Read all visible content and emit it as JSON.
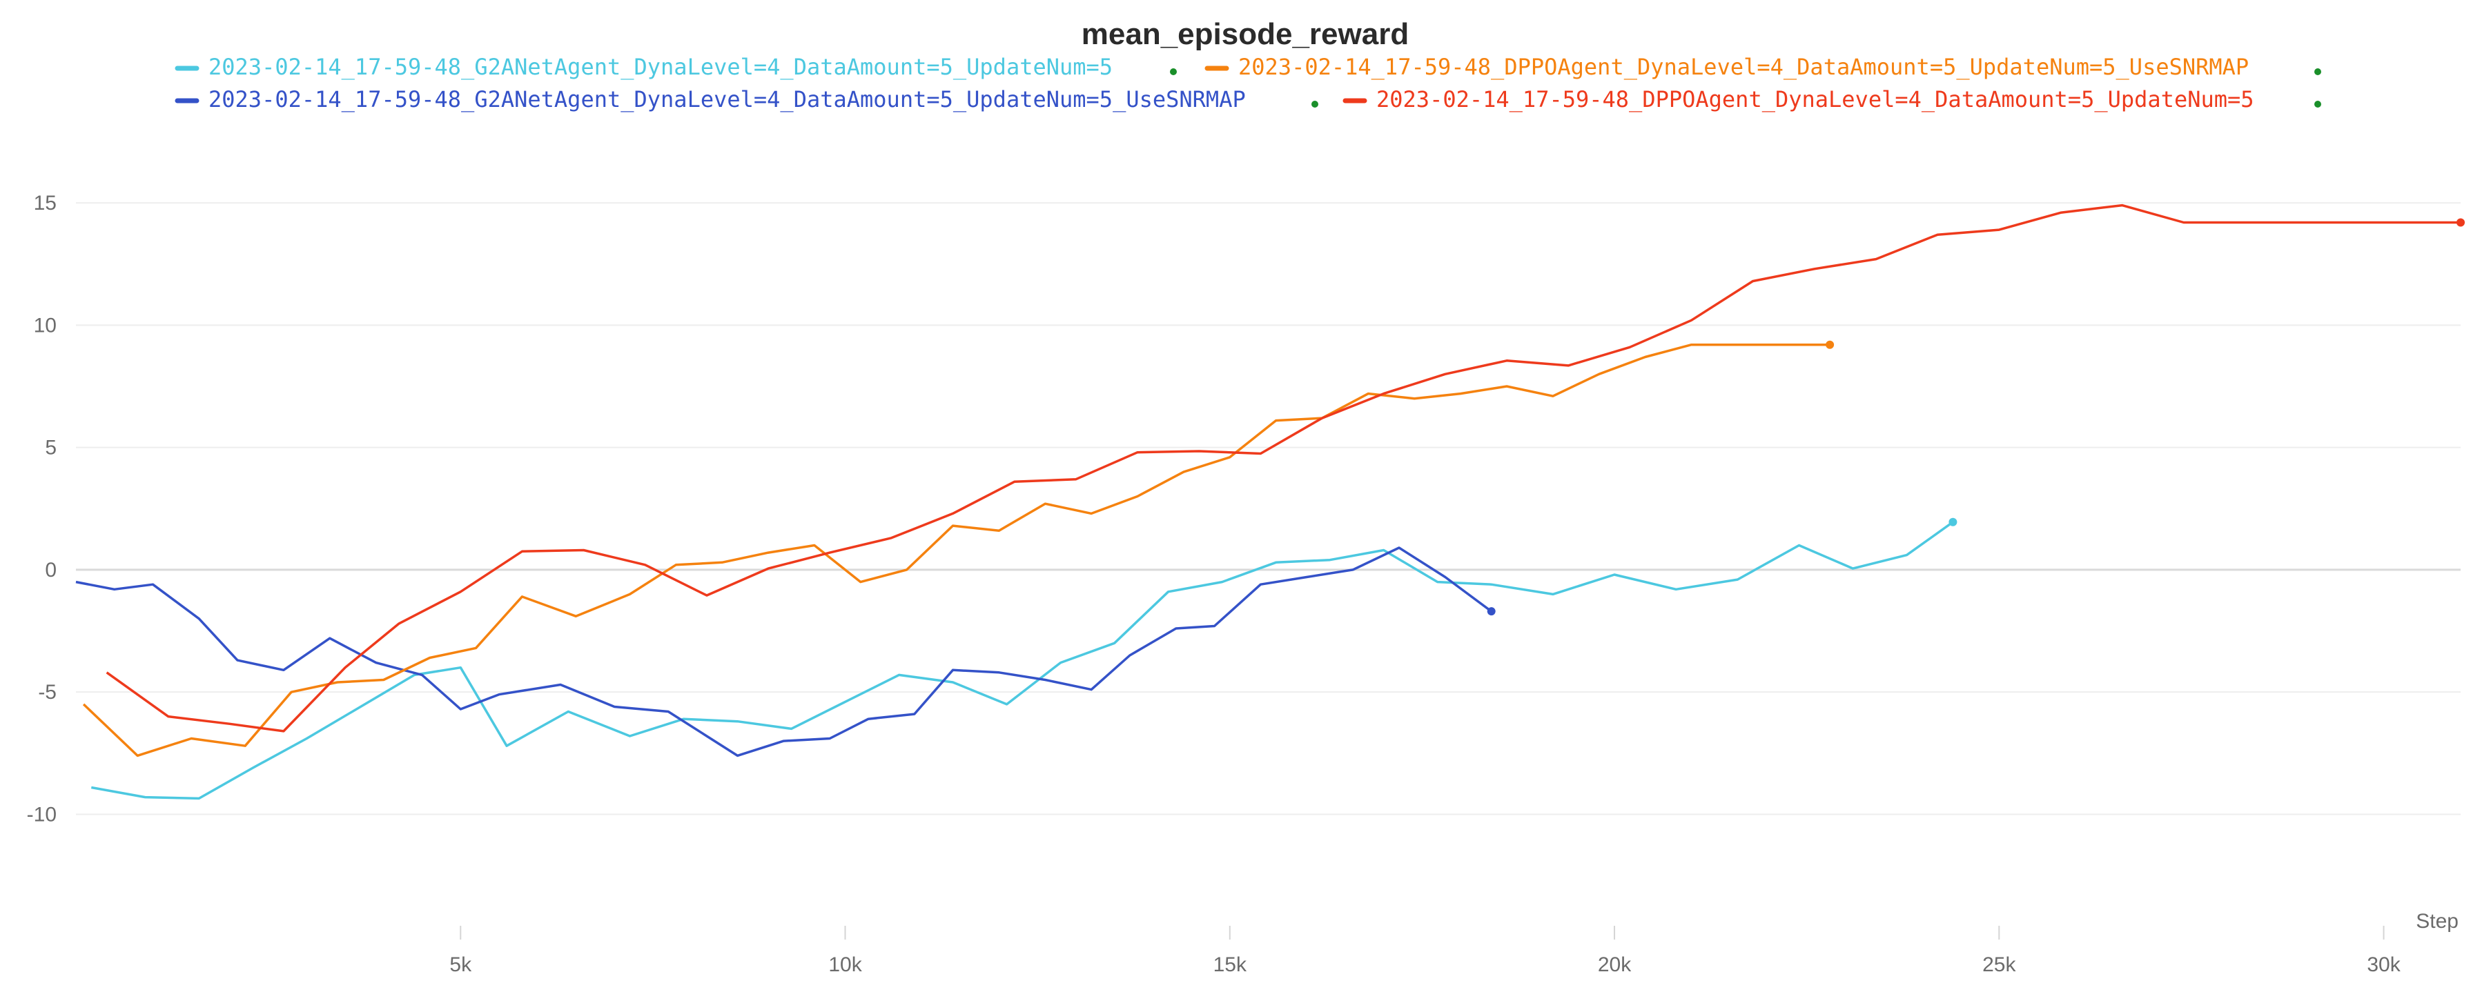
{
  "chart_data": {
    "type": "line",
    "title": "mean_episode_reward",
    "xlabel": "Step",
    "ylabel": "",
    "xlim": [
      0,
      31000
    ],
    "ylim": [
      -14.5,
      18.5
    ],
    "x_ticks": [
      {
        "value": 5000,
        "label": "5k"
      },
      {
        "value": 10000,
        "label": "10k"
      },
      {
        "value": 15000,
        "label": "15k"
      },
      {
        "value": 20000,
        "label": "20k"
      },
      {
        "value": 25000,
        "label": "25k"
      },
      {
        "value": 30000,
        "label": "30k"
      }
    ],
    "y_ticks": [
      {
        "value": 15,
        "label": "15"
      },
      {
        "value": 10,
        "label": "10"
      },
      {
        "value": 5,
        "label": "5"
      },
      {
        "value": 0,
        "label": "0"
      },
      {
        "value": -5,
        "label": "-5"
      },
      {
        "value": -10,
        "label": "-10"
      }
    ],
    "grid": true,
    "legend_position": "top",
    "series": [
      {
        "name": "2023-02-14_17-59-48_G2ANetAgent_DynaLevel=4_DataAmount=5_UpdateNum=5",
        "color": "#4cc8e0",
        "x": [
          200,
          900,
          1600,
          2300,
          3000,
          3700,
          4400,
          5000,
          5600,
          6400,
          7200,
          7900,
          8600,
          9300,
          10000,
          10700,
          11400,
          12100,
          12800,
          13500,
          14200,
          14900,
          15600,
          16300,
          17000,
          17700,
          18400,
          19200,
          20000,
          20800,
          21600,
          22400,
          23100,
          23800,
          24400
        ],
        "y": [
          -8.9,
          -9.3,
          -9.35,
          -8.1,
          -6.9,
          -5.6,
          -4.3,
          -4.0,
          -7.2,
          -5.8,
          -6.8,
          -6.1,
          -6.2,
          -6.5,
          -5.4,
          -4.3,
          -4.6,
          -5.5,
          -3.8,
          -3.0,
          -0.9,
          -0.5,
          0.3,
          0.4,
          0.8,
          -0.5,
          -0.6,
          -1.0,
          -0.2,
          -0.8,
          -0.4,
          1.0,
          0.05,
          0.6,
          1.95
        ]
      },
      {
        "name": "2023-02-14_17-59-48_G2ANetAgent_DynaLevel=4_DataAmount=5_UpdateNum=5_UseSNRMAP",
        "color": "#3452c8",
        "x": [
          0,
          500,
          1000,
          1600,
          2100,
          2700,
          3300,
          3900,
          4500,
          5000,
          5500,
          6300,
          7000,
          7700,
          8200,
          8600,
          9200,
          9800,
          10300,
          10900,
          11400,
          12000,
          12600,
          13200,
          13700,
          14300,
          14800,
          15400,
          16000,
          16600,
          17200,
          17800,
          18400
        ],
        "y": [
          -0.5,
          -0.8,
          -0.6,
          -2.0,
          -3.7,
          -4.1,
          -2.8,
          -3.8,
          -4.3,
          -5.7,
          -5.1,
          -4.7,
          -5.6,
          -5.8,
          -6.8,
          -7.6,
          -7.0,
          -6.9,
          -6.1,
          -5.9,
          -4.1,
          -4.2,
          -4.5,
          -4.9,
          -3.5,
          -2.4,
          -2.3,
          -0.6,
          -0.3,
          0.0,
          0.9,
          -0.3,
          -1.7
        ]
      },
      {
        "name": "2023-02-14_17-59-48_DPPOAgent_DynaLevel=4_DataAmount=5_UpdateNum=5_UseSNRMAP",
        "color": "#f5820f",
        "x": [
          100,
          800,
          1500,
          2200,
          2800,
          3400,
          4000,
          4600,
          5200,
          5800,
          6500,
          7200,
          7800,
          8400,
          9000,
          9600,
          10200,
          10800,
          11400,
          12000,
          12600,
          13200,
          13800,
          14400,
          15000,
          15600,
          16200,
          16800,
          17400,
          18000,
          18600,
          19200,
          19800,
          20400,
          21000,
          21600,
          22200,
          22800
        ],
        "y": [
          -5.5,
          -7.6,
          -6.9,
          -7.2,
          -5.0,
          -4.6,
          -4.5,
          -3.6,
          -3.2,
          -1.1,
          -1.9,
          -1.0,
          0.2,
          0.3,
          0.7,
          1.0,
          -0.5,
          0.0,
          1.8,
          1.6,
          2.7,
          2.3,
          3.0,
          4.0,
          4.6,
          6.1,
          6.2,
          7.2,
          7.0,
          7.2,
          7.5,
          7.1,
          8.0,
          8.7,
          9.2,
          9.2,
          9.2,
          9.2
        ]
      },
      {
        "name": "2023-02-14_17-59-48_DPPOAgent_DynaLevel=4_DataAmount=5_UpdateNum=5",
        "color": "#ee3a1c",
        "x": [
          400,
          1200,
          2000,
          2700,
          3500,
          4200,
          5000,
          5800,
          6600,
          7400,
          8200,
          9000,
          9800,
          10600,
          11400,
          12200,
          13000,
          13800,
          14600,
          15400,
          16200,
          17000,
          17800,
          18600,
          19400,
          20200,
          21000,
          21800,
          22600,
          23400,
          24200,
          25000,
          25800,
          26600,
          27400,
          28200,
          29000,
          29800,
          30600,
          31000
        ],
        "y": [
          -4.2,
          -6.0,
          -6.3,
          -6.6,
          -4.0,
          -2.2,
          -0.9,
          0.75,
          0.8,
          0.2,
          -1.05,
          0.05,
          0.7,
          1.3,
          2.3,
          3.6,
          3.7,
          4.8,
          4.85,
          4.75,
          6.2,
          7.2,
          8.0,
          8.55,
          8.35,
          9.1,
          10.2,
          11.8,
          12.3,
          12.7,
          13.7,
          13.9,
          14.6,
          14.9,
          14.2,
          14.2,
          14.2,
          14.2,
          14.2,
          14.2
        ]
      }
    ]
  }
}
